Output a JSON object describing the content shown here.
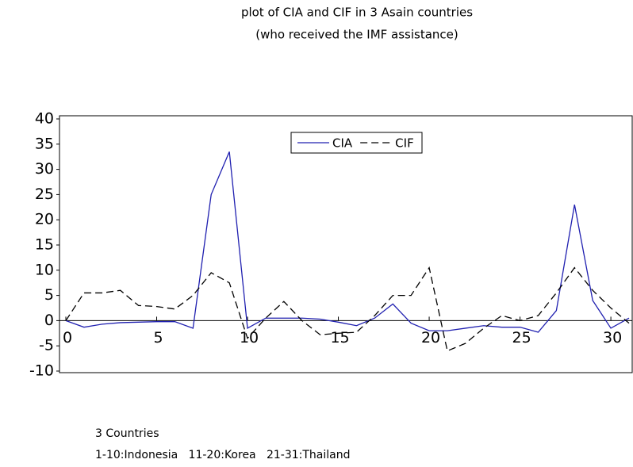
{
  "chart_data": {
    "type": "line",
    "title": "plot of CIA and CIF in 3 Asain countries",
    "subtitle": "(who received the IMF assistance)",
    "x": [
      0,
      1,
      2,
      3,
      4,
      5,
      6,
      7,
      8,
      9,
      10,
      11,
      12,
      13,
      14,
      15,
      16,
      17,
      18,
      19,
      20,
      21,
      22,
      23,
      24,
      25,
      26,
      27,
      28,
      29,
      30,
      31
    ],
    "series": [
      {
        "name": "CIA",
        "color": "#2020b0",
        "style": "solid",
        "values": [
          0,
          -1.3,
          -0.7,
          -0.4,
          -0.3,
          -0.2,
          -0.2,
          -1.5,
          25,
          33.5,
          -1.5,
          0.5,
          0.5,
          0.5,
          0.3,
          -0.3,
          -1,
          0.5,
          3.3,
          -0.5,
          -2,
          -2,
          -1.5,
          -1,
          -1.3,
          -1.3,
          -2.3,
          2,
          23,
          4,
          -1.5,
          0.5
        ]
      },
      {
        "name": "CIF",
        "color": "#000000",
        "style": "dashed",
        "values": [
          0,
          5.5,
          5.5,
          6,
          3,
          2.8,
          2.3,
          5,
          9.5,
          7.5,
          -3.5,
          0.5,
          3.8,
          0,
          -2.8,
          -2.5,
          -2.3,
          1,
          5,
          5,
          10.5,
          -6,
          -4.5,
          -1.5,
          1,
          0,
          1,
          5.5,
          10.5,
          6,
          2.5,
          -0.5
        ]
      }
    ],
    "xlim": [
      0,
      31
    ],
    "xticks": [
      0,
      5,
      10,
      15,
      20,
      25,
      30
    ],
    "ylim": [
      -10,
      40
    ],
    "yticks": [
      -10,
      -5,
      0,
      5,
      10,
      15,
      20,
      25,
      30,
      35,
      40
    ],
    "legend": "top",
    "notes": [
      "3 Countries",
      "1-10:Indonesia   11-20:Korea   21-31:Thailand"
    ]
  }
}
